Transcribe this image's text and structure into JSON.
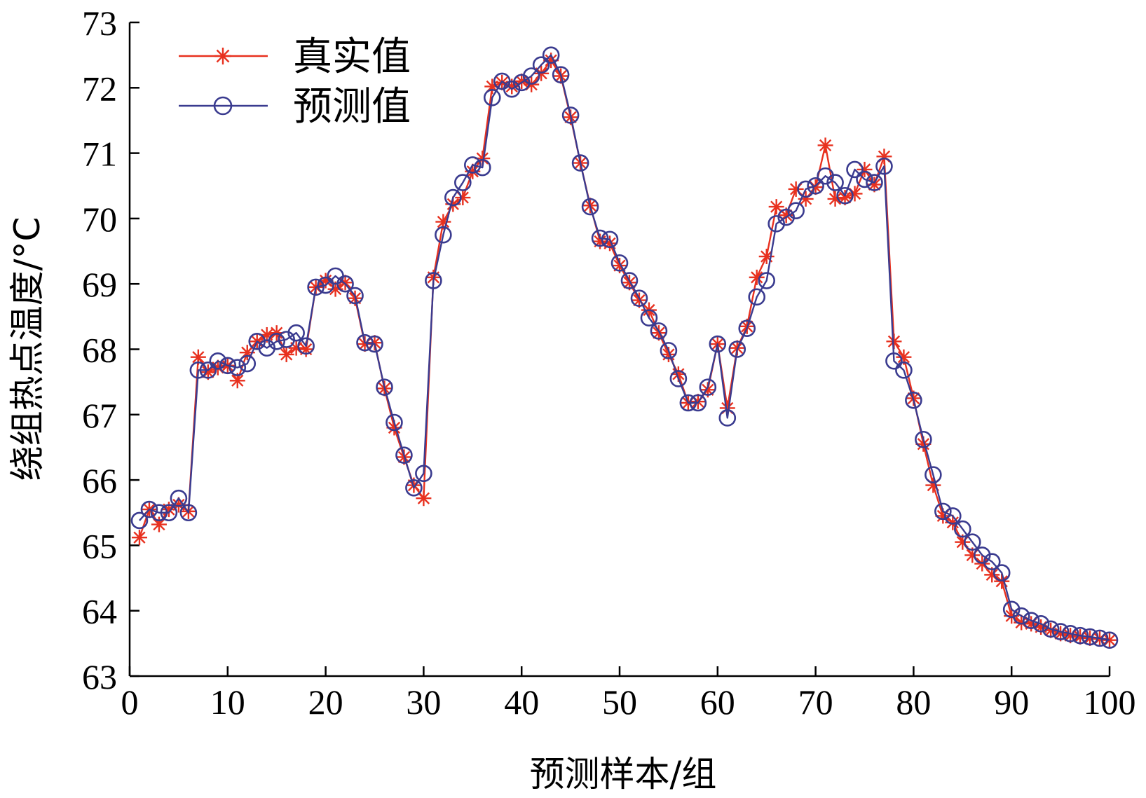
{
  "chart_data": {
    "type": "line",
    "xlabel": "预测样本/组",
    "ylabel": "绕组热点温度/°C",
    "xlim": [
      0,
      100
    ],
    "ylim": [
      63,
      73
    ],
    "xticks": [
      "0",
      "10",
      "20",
      "30",
      "40",
      "50",
      "60",
      "70",
      "80",
      "90",
      "100"
    ],
    "yticks": [
      "63",
      "64",
      "65",
      "66",
      "67",
      "68",
      "69",
      "70",
      "71",
      "72",
      "73"
    ],
    "grid": false,
    "legend": "top-left",
    "x": [
      1,
      2,
      3,
      4,
      5,
      6,
      7,
      8,
      9,
      10,
      11,
      12,
      13,
      14,
      15,
      16,
      17,
      18,
      19,
      20,
      21,
      22,
      23,
      24,
      25,
      26,
      27,
      28,
      29,
      30,
      31,
      32,
      33,
      34,
      35,
      36,
      37,
      38,
      39,
      40,
      41,
      42,
      43,
      44,
      45,
      46,
      47,
      48,
      49,
      50,
      51,
      52,
      53,
      54,
      55,
      56,
      57,
      58,
      59,
      60,
      61,
      62,
      63,
      64,
      65,
      66,
      67,
      68,
      69,
      70,
      71,
      72,
      73,
      74,
      75,
      76,
      77,
      78,
      79,
      80,
      81,
      82,
      83,
      84,
      85,
      86,
      87,
      88,
      89,
      90,
      91,
      92,
      93,
      94,
      95,
      96,
      97,
      98,
      99,
      100
    ],
    "series": [
      {
        "name": "真实值",
        "color": "#e8311f",
        "marker": "asterisk",
        "values": [
          65.12,
          65.55,
          65.32,
          65.55,
          65.62,
          65.52,
          67.88,
          67.65,
          67.72,
          67.75,
          67.52,
          67.95,
          68.12,
          68.22,
          68.25,
          67.92,
          68.02,
          68.0,
          68.95,
          69.05,
          68.92,
          69.02,
          68.78,
          68.08,
          68.1,
          67.4,
          66.8,
          66.35,
          65.92,
          65.72,
          69.1,
          69.95,
          70.22,
          70.32,
          70.72,
          70.92,
          72.02,
          72.08,
          72.02,
          72.1,
          72.05,
          72.22,
          72.42,
          72.18,
          71.55,
          70.85,
          70.2,
          69.65,
          69.62,
          69.28,
          69.02,
          68.75,
          68.6,
          68.25,
          67.92,
          67.62,
          67.18,
          67.2,
          67.38,
          68.08,
          67.1,
          68.02,
          68.35,
          69.1,
          69.42,
          70.18,
          70.05,
          70.45,
          70.3,
          70.48,
          71.12,
          70.3,
          70.32,
          70.38,
          70.75,
          70.52,
          70.95,
          68.12,
          67.88,
          67.25,
          66.55,
          65.92,
          65.45,
          65.35,
          65.05,
          64.85,
          64.72,
          64.55,
          64.45,
          63.92,
          63.82,
          63.8,
          63.75,
          63.7,
          63.65,
          63.62,
          63.6,
          63.58,
          63.57,
          63.55
        ]
      },
      {
        "name": "预测值",
        "color": "#3a3b8f",
        "marker": "circle",
        "values": [
          65.38,
          65.55,
          65.5,
          65.5,
          65.72,
          65.5,
          67.68,
          67.68,
          67.82,
          67.75,
          67.72,
          67.78,
          68.12,
          68.02,
          68.12,
          68.15,
          68.25,
          68.05,
          68.95,
          68.98,
          69.12,
          69.0,
          68.82,
          68.1,
          68.08,
          67.42,
          66.88,
          66.38,
          65.88,
          66.1,
          69.05,
          69.75,
          70.32,
          70.55,
          70.82,
          70.78,
          71.85,
          72.1,
          71.98,
          72.08,
          72.18,
          72.35,
          72.5,
          72.2,
          71.58,
          70.85,
          70.18,
          69.7,
          69.68,
          69.32,
          69.05,
          68.78,
          68.48,
          68.28,
          67.98,
          67.55,
          67.18,
          67.18,
          67.42,
          68.08,
          66.95,
          68.0,
          68.32,
          68.8,
          69.05,
          69.92,
          70.02,
          70.12,
          70.45,
          70.5,
          70.65,
          70.55,
          70.35,
          70.75,
          70.6,
          70.55,
          70.8,
          67.82,
          67.68,
          67.22,
          66.62,
          66.08,
          65.52,
          65.45,
          65.25,
          65.05,
          64.85,
          64.75,
          64.58,
          64.02,
          63.92,
          63.85,
          63.8,
          63.72,
          63.68,
          63.65,
          63.62,
          63.6,
          63.58,
          63.55
        ]
      }
    ]
  }
}
